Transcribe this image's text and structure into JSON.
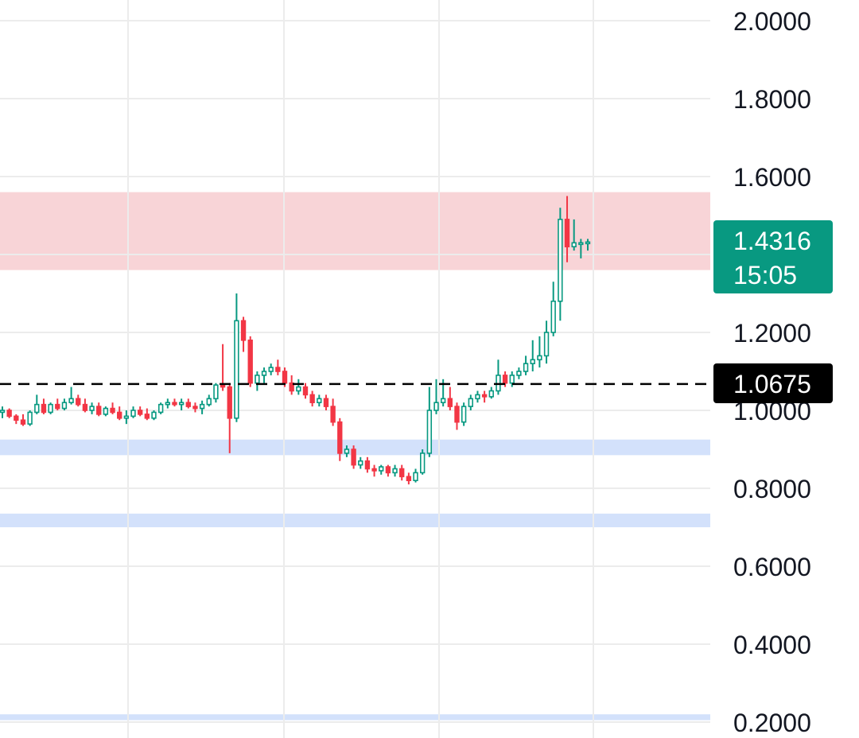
{
  "chart_data": {
    "type": "candlestick",
    "title": "",
    "xlabel": "",
    "ylabel": "",
    "ylim": [
      0.18,
      2.05
    ],
    "y_axis_position": "right",
    "y_ticks": [
      "2.0000",
      "1.8000",
      "1.6000",
      "1.2000",
      "1.0000",
      "0.8000",
      "0.6000",
      "0.4000",
      "0.2000"
    ],
    "grid": true,
    "last_price": {
      "value": "1.4316",
      "countdown": "15:05",
      "color": "#089981"
    },
    "reference_line": {
      "value": "1.0675",
      "style": "dashed",
      "color": "#000000"
    },
    "zones": [
      {
        "from": 1.36,
        "to": 1.56,
        "color": "#f8d4d7",
        "kind": "resistance"
      },
      {
        "from": 0.885,
        "to": 0.925,
        "color": "#d3e1fb",
        "kind": "support"
      },
      {
        "from": 0.7,
        "to": 0.735,
        "color": "#d3e1fb",
        "kind": "support"
      },
      {
        "from": 0.205,
        "to": 0.22,
        "color": "#d3e1fb",
        "kind": "support"
      }
    ],
    "up_color": "#089981",
    "down_color": "#f23645",
    "candles": [
      [
        0.995,
        1.01,
        0.98,
        1.0
      ],
      [
        1.0,
        1.005,
        0.98,
        0.985
      ],
      [
        0.985,
        0.99,
        0.965,
        0.975
      ],
      [
        0.975,
        0.99,
        0.96,
        0.965
      ],
      [
        0.965,
        1.0,
        0.96,
        0.995
      ],
      [
        0.995,
        1.04,
        0.99,
        1.015
      ],
      [
        1.015,
        1.03,
        0.99,
        0.995
      ],
      [
        0.995,
        1.02,
        0.99,
        1.015
      ],
      [
        1.015,
        1.03,
        1.0,
        1.005
      ],
      [
        1.005,
        1.03,
        1.0,
        1.02
      ],
      [
        1.02,
        1.06,
        1.015,
        1.03
      ],
      [
        1.03,
        1.04,
        1.01,
        1.015
      ],
      [
        1.015,
        1.03,
        0.995,
        1.0
      ],
      [
        1.0,
        1.02,
        0.99,
        1.01
      ],
      [
        1.01,
        1.02,
        0.985,
        0.99
      ],
      [
        0.99,
        1.01,
        0.985,
        1.005
      ],
      [
        1.005,
        1.02,
        0.99,
        0.995
      ],
      [
        0.995,
        1.01,
        0.975,
        0.98
      ],
      [
        0.98,
        1.0,
        0.965,
        0.985
      ],
      [
        0.985,
        1.01,
        0.98,
        1.0
      ],
      [
        1.0,
        1.01,
        0.985,
        0.99
      ],
      [
        0.99,
        1.005,
        0.975,
        0.98
      ],
      [
        0.98,
        1.0,
        0.975,
        0.995
      ],
      [
        0.995,
        1.02,
        0.99,
        1.015
      ],
      [
        1.015,
        1.03,
        1.005,
        1.02
      ],
      [
        1.02,
        1.03,
        1.01,
        1.015
      ],
      [
        1.015,
        1.03,
        1.0,
        1.02
      ],
      [
        1.02,
        1.03,
        1.005,
        1.01
      ],
      [
        1.01,
        1.02,
        0.995,
        1.005
      ],
      [
        1.005,
        1.025,
        0.99,
        1.015
      ],
      [
        1.015,
        1.04,
        1.01,
        1.03
      ],
      [
        1.03,
        1.07,
        1.02,
        1.065
      ],
      [
        1.065,
        1.17,
        1.05,
        1.06
      ],
      [
        1.06,
        1.07,
        0.89,
        0.98
      ],
      [
        0.98,
        1.3,
        0.97,
        1.23
      ],
      [
        1.23,
        1.24,
        1.15,
        1.18
      ],
      [
        1.18,
        1.19,
        1.06,
        1.07
      ],
      [
        1.07,
        1.1,
        1.05,
        1.09
      ],
      [
        1.09,
        1.11,
        1.07,
        1.1
      ],
      [
        1.1,
        1.12,
        1.09,
        1.11
      ],
      [
        1.11,
        1.13,
        1.09,
        1.1
      ],
      [
        1.1,
        1.11,
        1.06,
        1.07
      ],
      [
        1.07,
        1.09,
        1.04,
        1.05
      ],
      [
        1.05,
        1.08,
        1.04,
        1.06
      ],
      [
        1.06,
        1.07,
        1.03,
        1.04
      ],
      [
        1.04,
        1.05,
        1.01,
        1.02
      ],
      [
        1.02,
        1.04,
        1.01,
        1.03
      ],
      [
        1.03,
        1.04,
        1.0,
        1.01
      ],
      [
        1.01,
        1.03,
        0.96,
        0.97
      ],
      [
        0.97,
        0.98,
        0.87,
        0.89
      ],
      [
        0.89,
        0.91,
        0.88,
        0.9
      ],
      [
        0.9,
        0.91,
        0.85,
        0.86
      ],
      [
        0.86,
        0.88,
        0.85,
        0.87
      ],
      [
        0.87,
        0.88,
        0.84,
        0.85
      ],
      [
        0.85,
        0.86,
        0.83,
        0.845
      ],
      [
        0.845,
        0.86,
        0.835,
        0.855
      ],
      [
        0.855,
        0.86,
        0.83,
        0.84
      ],
      [
        0.84,
        0.86,
        0.83,
        0.85
      ],
      [
        0.85,
        0.86,
        0.82,
        0.83
      ],
      [
        0.83,
        0.84,
        0.81,
        0.82
      ],
      [
        0.82,
        0.85,
        0.815,
        0.84
      ],
      [
        0.84,
        0.9,
        0.835,
        0.89
      ],
      [
        0.89,
        1.06,
        0.88,
        1.0
      ],
      [
        1.0,
        1.08,
        0.99,
        1.02
      ],
      [
        1.02,
        1.08,
        1.01,
        1.03
      ],
      [
        1.03,
        1.06,
        1.0,
        1.01
      ],
      [
        1.01,
        1.02,
        0.95,
        0.97
      ],
      [
        0.97,
        1.02,
        0.96,
        1.01
      ],
      [
        1.01,
        1.04,
        1.0,
        1.03
      ],
      [
        1.03,
        1.05,
        1.02,
        1.04
      ],
      [
        1.04,
        1.05,
        1.02,
        1.035
      ],
      [
        1.035,
        1.06,
        1.03,
        1.05
      ],
      [
        1.05,
        1.13,
        1.04,
        1.09
      ],
      [
        1.09,
        1.1,
        1.06,
        1.07
      ],
      [
        1.07,
        1.1,
        1.06,
        1.09
      ],
      [
        1.09,
        1.11,
        1.08,
        1.1
      ],
      [
        1.1,
        1.14,
        1.09,
        1.12
      ],
      [
        1.12,
        1.18,
        1.1,
        1.13
      ],
      [
        1.13,
        1.19,
        1.11,
        1.14
      ],
      [
        1.14,
        1.23,
        1.12,
        1.2
      ],
      [
        1.2,
        1.33,
        1.19,
        1.28
      ],
      [
        1.28,
        1.52,
        1.23,
        1.49
      ],
      [
        1.49,
        1.55,
        1.38,
        1.42
      ],
      [
        1.42,
        1.49,
        1.41,
        1.43
      ],
      [
        1.43,
        1.44,
        1.39,
        1.43
      ],
      [
        1.43,
        1.44,
        1.41,
        1.432
      ]
    ]
  }
}
